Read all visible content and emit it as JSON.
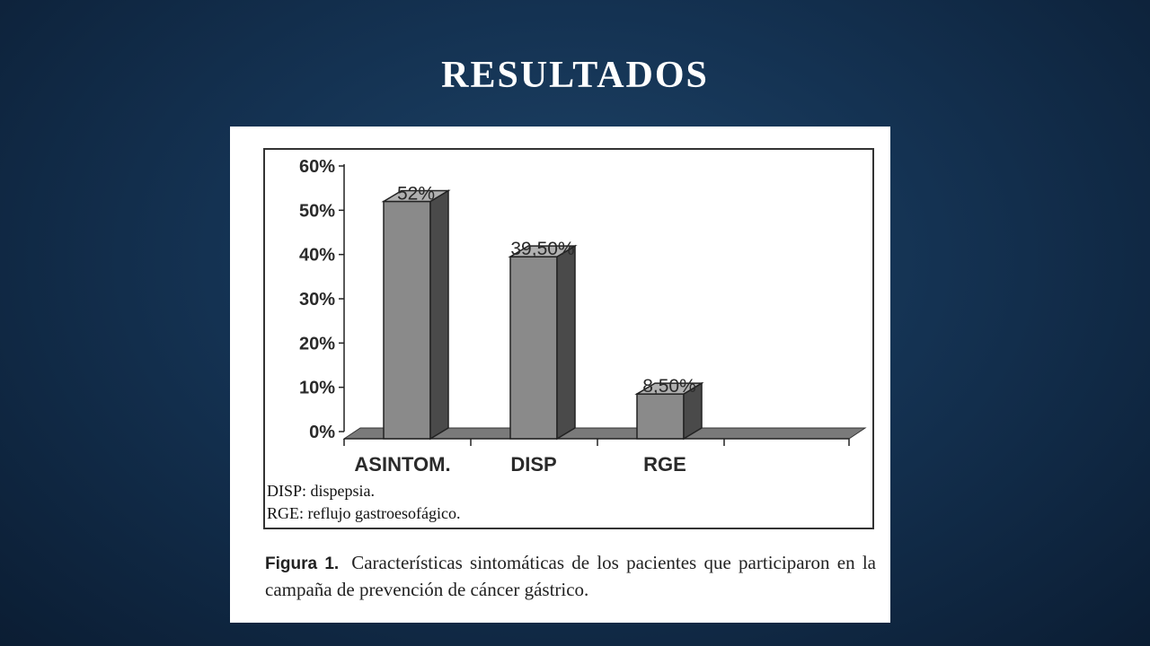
{
  "slide": {
    "title": "RESULTADOS"
  },
  "legend": [
    {
      "abbr": "DISP",
      "text": ": dispepsia."
    },
    {
      "abbr": "RGE",
      "text": ": reflujo gastroesofágico."
    }
  ],
  "caption": {
    "label": "Figura 1.",
    "text": "Características sintomáticas de los pacientes que participaron en la campaña de prevención de cáncer gástrico."
  },
  "colors": {
    "bar_front": "#8a8a8a",
    "bar_side": "#4a4a4a",
    "bar_top": "#b0b0b0",
    "floor": "#7a7a7a"
  },
  "chart_data": {
    "type": "bar",
    "categories": [
      "ASINTOM.",
      "DISP",
      "RGE"
    ],
    "values": [
      52,
      39.5,
      8.5
    ],
    "data_labels": [
      "52%",
      "39,50%",
      "8,50%"
    ],
    "y_ticks": [
      "0%",
      "10%",
      "20%",
      "30%",
      "40%",
      "50%",
      "60%"
    ],
    "ylim": [
      0,
      60
    ],
    "title": "",
    "xlabel": "",
    "ylabel": "",
    "grid": false,
    "style": "3d-bar"
  }
}
